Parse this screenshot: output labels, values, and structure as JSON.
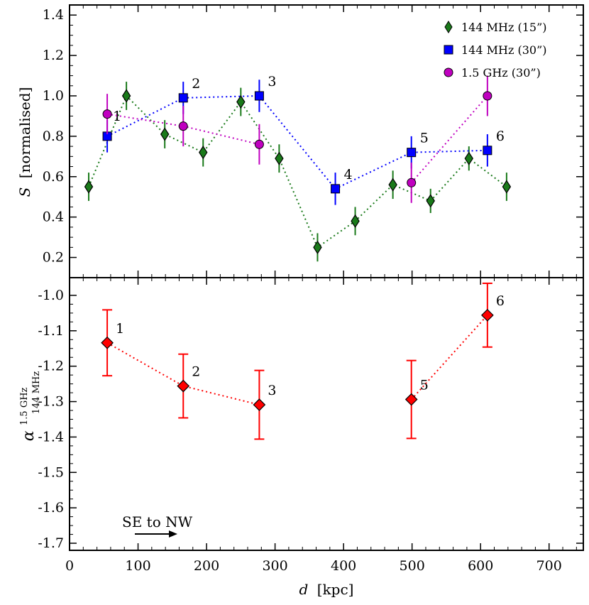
{
  "chart_data": [
    {
      "type": "scatter",
      "panel": "top",
      "ylabel_symbol": "S",
      "ylabel_text": "[normalised]",
      "xlim": [
        0,
        750
      ],
      "ylim": [
        0.1,
        1.45
      ],
      "yticks": [
        0.2,
        0.4,
        0.6,
        0.8,
        1.0,
        1.2,
        1.4
      ],
      "ytick_labels": [
        "0.2",
        "0.4",
        "0.6",
        "0.8",
        "1.0",
        "1.2",
        "1.4"
      ],
      "legend_position": "top-right",
      "series": [
        {
          "name": "144 MHz (15”)",
          "color": "#1a7a1a",
          "marker": "diamond",
          "x": [
            28,
            83,
            139,
            195,
            250,
            306,
            362,
            417,
            472,
            527,
            583,
            638
          ],
          "y": [
            0.55,
            1.0,
            0.81,
            0.72,
            0.97,
            0.69,
            0.25,
            0.38,
            0.56,
            0.48,
            0.69,
            0.55
          ],
          "yerr": [
            0.07,
            0.07,
            0.07,
            0.07,
            0.07,
            0.07,
            0.07,
            0.07,
            0.07,
            0.06,
            0.06,
            0.07
          ]
        },
        {
          "name": "144 MHz (30”)",
          "color": "#0000ff",
          "marker": "square",
          "x": [
            55,
            166,
            277,
            388,
            499,
            610
          ],
          "y": [
            0.8,
            0.99,
            1.0,
            0.54,
            0.72,
            0.73
          ],
          "yerr": [
            0.08,
            0.08,
            0.08,
            0.08,
            0.08,
            0.08
          ],
          "point_labels": [
            "1",
            "2",
            "3",
            "4",
            "5",
            "6"
          ]
        },
        {
          "name": "1.5 GHz (30”)",
          "color": "#c000c0",
          "marker": "circle",
          "x": [
            55,
            166,
            277,
            499,
            610
          ],
          "y": [
            0.91,
            0.85,
            0.76,
            0.57,
            1.0
          ],
          "yerr": [
            0.1,
            0.1,
            0.1,
            0.1,
            0.1
          ],
          "segments": [
            [
              0,
              1,
              2
            ],
            [
              3,
              4
            ]
          ]
        }
      ]
    },
    {
      "type": "scatter",
      "panel": "bottom",
      "ylabel_symbol": "α",
      "ylabel_sup": "1.5 GHz",
      "ylabel_sub": "144 MHz",
      "xlim": [
        0,
        750
      ],
      "ylim": [
        -1.72,
        -0.95
      ],
      "yticks": [
        -1.0,
        -1.1,
        -1.2,
        -1.3,
        -1.4,
        -1.5,
        -1.6,
        -1.7
      ],
      "ytick_labels": [
        "-1.0",
        "-1.1",
        "-1.2",
        "-1.3",
        "-1.4",
        "-1.5",
        "-1.6",
        "-1.7"
      ],
      "xticks": [
        0,
        100,
        200,
        300,
        400,
        500,
        600,
        700
      ],
      "xtick_labels": [
        "0",
        "100",
        "200",
        "300",
        "400",
        "500",
        "600",
        "700"
      ],
      "xlabel_symbol": "d",
      "xlabel_text": "[kpc]",
      "annotation": "SE to NW",
      "series": [
        {
          "color": "#ff0000",
          "marker": "diamond",
          "x": [
            55,
            166,
            277,
            499,
            610
          ],
          "y": [
            -1.134,
            -1.256,
            -1.309,
            -1.294,
            -1.056
          ],
          "yerr": [
            0.093,
            0.09,
            0.097,
            0.11,
            0.09
          ],
          "point_labels": [
            "1",
            "2",
            "3",
            "5",
            "6"
          ],
          "segments": [
            [
              0,
              1,
              2
            ],
            [
              3,
              4
            ]
          ]
        }
      ]
    }
  ]
}
